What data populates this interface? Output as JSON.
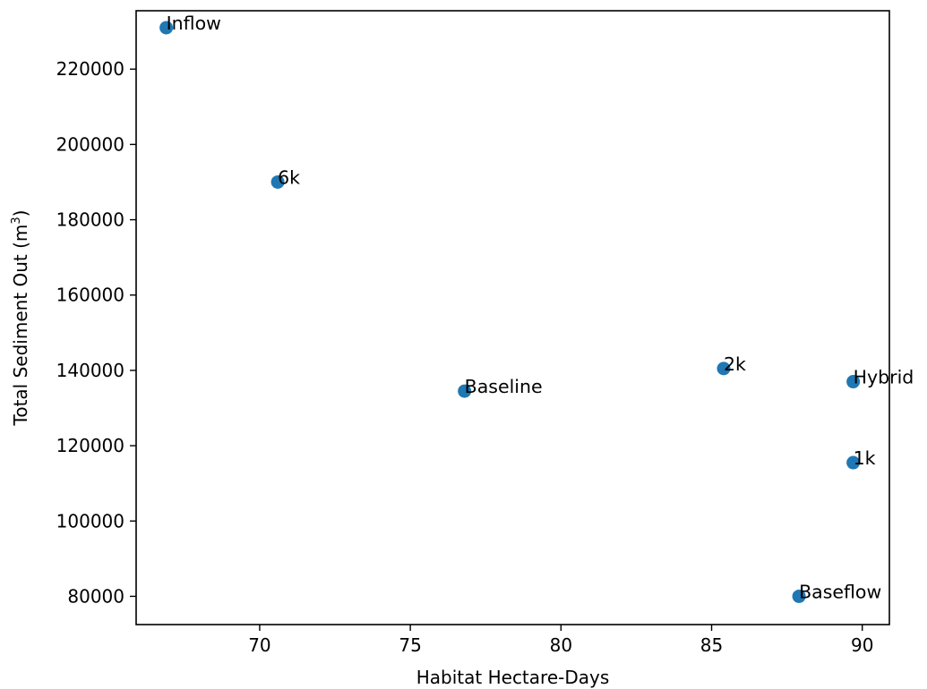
{
  "chart_data": {
    "type": "scatter",
    "title": "",
    "xlabel": "Habitat Hectare-Days",
    "ylabel": {
      "prefix": "Total Sediment Out (m",
      "superscript": "3",
      "suffix": ")"
    },
    "xlim": [
      65.9,
      90.9
    ],
    "ylim": [
      72500,
      235500
    ],
    "xticks": [
      70,
      75,
      80,
      85,
      90
    ],
    "yticks": [
      80000,
      100000,
      120000,
      140000,
      160000,
      180000,
      200000,
      220000
    ],
    "grid": false,
    "legend": false,
    "marker_color": "#1f77b4",
    "points": [
      {
        "label": "Inflow",
        "x": 66.9,
        "y": 231000
      },
      {
        "label": "6k",
        "x": 70.6,
        "y": 190000
      },
      {
        "label": "Baseline",
        "x": 76.8,
        "y": 134500
      },
      {
        "label": "2k",
        "x": 85.4,
        "y": 140500
      },
      {
        "label": "Hybrid",
        "x": 89.7,
        "y": 137000
      },
      {
        "label": "1k",
        "x": 89.7,
        "y": 115500
      },
      {
        "label": "Baseflow",
        "x": 87.9,
        "y": 80000
      }
    ]
  }
}
